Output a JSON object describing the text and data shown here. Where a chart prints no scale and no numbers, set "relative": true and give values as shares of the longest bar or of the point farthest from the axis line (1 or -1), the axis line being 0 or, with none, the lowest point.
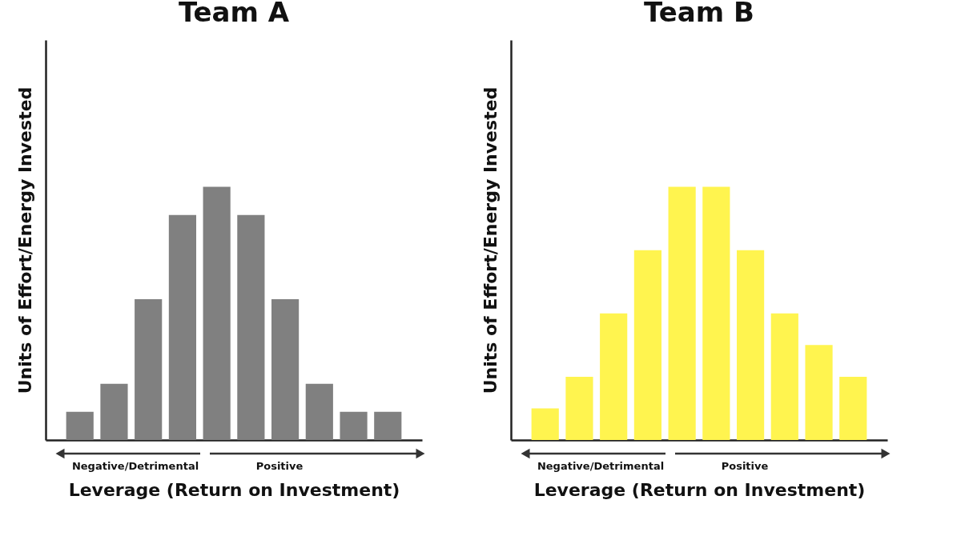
{
  "chart_data": [
    {
      "type": "bar",
      "title": "Team A",
      "xlabel": "Leverage (Return on Investment)",
      "ylabel": "Units of Effort/Energy Invested",
      "relative": true,
      "color": "#808080",
      "categories": [
        null,
        null,
        null,
        null,
        null,
        null,
        null,
        null,
        null,
        null
      ],
      "values": [
        0.111,
        0.222,
        0.556,
        0.889,
        1,
        0.889,
        0.556,
        0.222,
        0.111,
        0.111
      ],
      "annotations": [
        "Negative/Detrimental",
        "Positive"
      ]
    },
    {
      "type": "bar",
      "title": "Team B",
      "xlabel": "Leverage (Return on Investment)",
      "ylabel": "Units of Effort/Energy Invested",
      "relative": true,
      "color": "#fff44f",
      "categories": [
        null,
        null,
        null,
        null,
        null,
        null,
        null,
        null,
        null,
        null
      ],
      "values": [
        0.125,
        0.25,
        0.5,
        0.75,
        1,
        1,
        0.75,
        0.5,
        0.375,
        0.25
      ],
      "annotations": [
        "Negative/Detrimental",
        "Positive"
      ]
    }
  ]
}
